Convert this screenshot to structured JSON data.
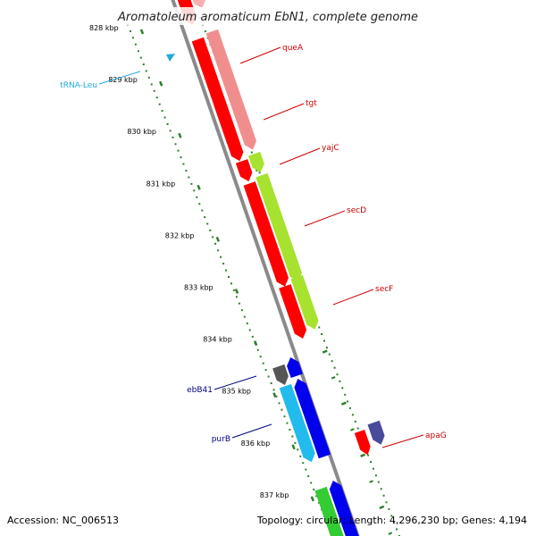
{
  "title": "Aromatoleum aromaticum EbN1, complete genome",
  "footer": {
    "accession": "Accession: NC_006513",
    "summary": "Topology: circular; Length: 4,296,230 bp; Genes: 4,194"
  },
  "colors": {
    "backbone": "#8a8a8a",
    "ruler": "#2f7d2f",
    "forward_red": "#ff0000",
    "pink": "#f08e8e",
    "lime": "#a6e22e",
    "blue": "#0000ee",
    "cyan": "#22bbee",
    "dark_gray": "#555555",
    "slate": "#4a4a9a",
    "green": "#33cc33",
    "trna": "#22aadd",
    "label_red": "#cc0000",
    "label_navy": "#000088",
    "label_cyan": "#22aadd"
  },
  "ticks": [
    {
      "label": "828 kbp",
      "kbp": 828
    },
    {
      "label": "829 kbp",
      "kbp": 829
    },
    {
      "label": "830 kbp",
      "kbp": 830
    },
    {
      "label": "831 kbp",
      "kbp": 831
    },
    {
      "label": "832 kbp",
      "kbp": 832
    },
    {
      "label": "833 kbp",
      "kbp": 833
    },
    {
      "label": "834 kbp",
      "kbp": 834
    },
    {
      "label": "835 kbp",
      "kbp": 835
    },
    {
      "label": "836 kbp",
      "kbp": 836
    },
    {
      "label": "837 kbp",
      "kbp": 837
    }
  ],
  "genes": [
    {
      "label": "queA",
      "color_key": "label_red"
    },
    {
      "label": "tgt",
      "color_key": "label_red"
    },
    {
      "label": "yajC",
      "color_key": "label_red"
    },
    {
      "label": "secD",
      "color_key": "label_red"
    },
    {
      "label": "secF",
      "color_key": "label_red"
    },
    {
      "label": "apaG",
      "color_key": "label_red"
    },
    {
      "label": "ebB41",
      "color_key": "label_navy"
    },
    {
      "label": "purB",
      "color_key": "label_navy"
    },
    {
      "label": "tRNA-Leu",
      "color_key": "label_cyan"
    }
  ]
}
